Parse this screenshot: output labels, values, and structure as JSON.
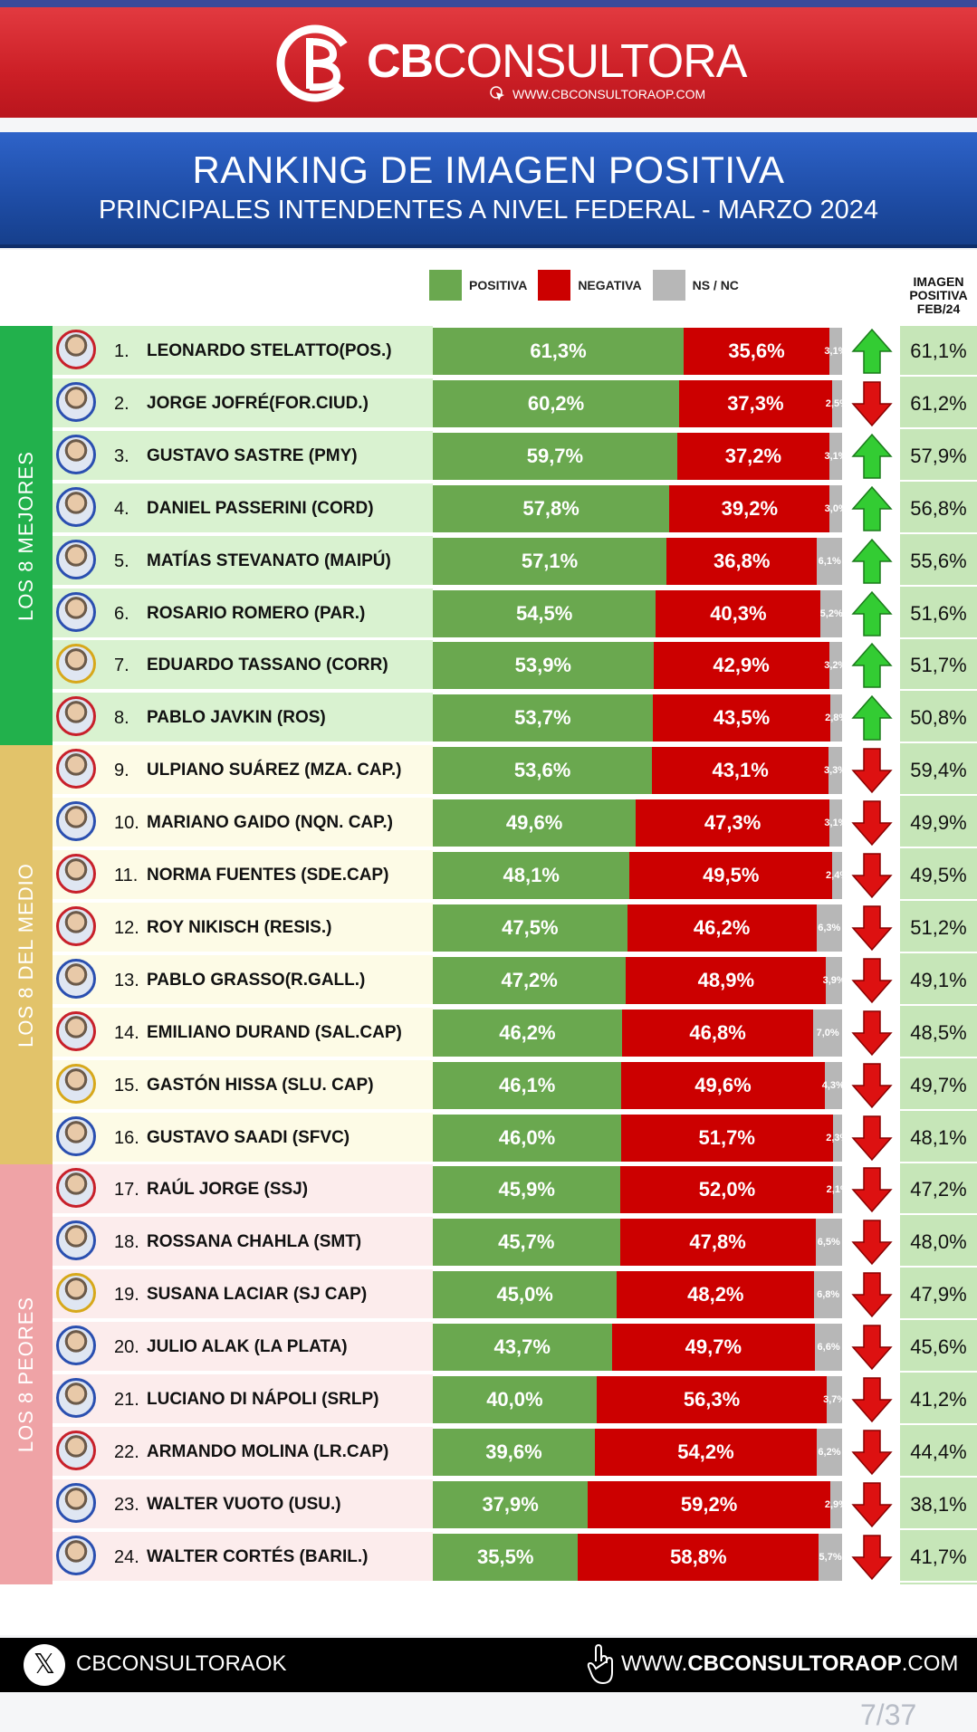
{
  "brand": {
    "name_bold": "CB",
    "name_light": "CONSULTORA",
    "url": "WWW.CBCONSULTORAOP.COM"
  },
  "title": {
    "main": "RANKING DE IMAGEN POSITIVA",
    "sub": "PRINCIPALES INTENDENTES A NIVEL FEDERAL - MARZO 2024"
  },
  "legend": {
    "positive": "POSITIVA",
    "negative": "NEGATIVA",
    "nsnc": "NS / NC",
    "colors": {
      "positive": "#6aa84f",
      "negative": "#cc0000",
      "nsnc": "#b7b7b7"
    }
  },
  "feb_header": [
    "IMAGEN",
    "POSITIVA",
    "FEB/24"
  ],
  "groups": [
    {
      "label": "LOS 8 MEJORES",
      "color": "#22b14c",
      "row_bg": "#d9f2d0"
    },
    {
      "label": "LOS 8 DEL MEDIO",
      "color": "#e2c36a",
      "row_bg": "#fdfbe6"
    },
    {
      "label": "LOS 8 PEORES",
      "color": "#efa3a6",
      "row_bg": "#fcecec"
    }
  ],
  "chart_data": {
    "type": "bar",
    "stacked": true,
    "orientation": "horizontal",
    "title": "RANKING DE IMAGEN POSITIVA",
    "subtitle": "PRINCIPALES INTENDENTES A NIVEL FEDERAL - MARZO 2024",
    "series": [
      {
        "name": "POSITIVA"
      },
      {
        "name": "NEGATIVA"
      },
      {
        "name": "NS / NC"
      }
    ],
    "rows": [
      {
        "rank": "1.",
        "name": "LEONARDO STELATTO(POS.)",
        "pos": 61.3,
        "neg": 35.6,
        "ns": 3.1,
        "pos_label": "61,3%",
        "neg_label": "35,6%",
        "ns_label": "3,1%",
        "trend": "up",
        "feb": "61,1%",
        "frame": "red"
      },
      {
        "rank": "2.",
        "name": "JORGE JOFRÉ(FOR.CIUD.)",
        "pos": 60.2,
        "neg": 37.3,
        "ns": 2.5,
        "pos_label": "60,2%",
        "neg_label": "37,3%",
        "ns_label": "2,5%",
        "trend": "down",
        "feb": "61,2%",
        "frame": "blue"
      },
      {
        "rank": "3.",
        "name": "GUSTAVO SASTRE (PMY)",
        "pos": 59.7,
        "neg": 37.2,
        "ns": 3.1,
        "pos_label": "59,7%",
        "neg_label": "37,2%",
        "ns_label": "3,1%",
        "trend": "up",
        "feb": "57,9%",
        "frame": "blue"
      },
      {
        "rank": "4.",
        "name": "DANIEL PASSERINI (CORD)",
        "pos": 57.8,
        "neg": 39.2,
        "ns": 3.0,
        "pos_label": "57,8%",
        "neg_label": "39,2%",
        "ns_label": "3,0%",
        "trend": "up",
        "feb": "56,8%",
        "frame": "blue"
      },
      {
        "rank": "5.",
        "name": "MATÍAS STEVANATO (MAIPÚ)",
        "pos": 57.1,
        "neg": 36.8,
        "ns": 6.1,
        "pos_label": "57,1%",
        "neg_label": "36,8%",
        "ns_label": "6,1%",
        "trend": "up",
        "feb": "55,6%",
        "frame": "blue"
      },
      {
        "rank": "6.",
        "name": "ROSARIO ROMERO (PAR.)",
        "pos": 54.5,
        "neg": 40.3,
        "ns": 5.2,
        "pos_label": "54,5%",
        "neg_label": "40,3%",
        "ns_label": "5,2%",
        "trend": "up",
        "feb": "51,6%",
        "frame": "blue"
      },
      {
        "rank": "7.",
        "name": "EDUARDO TASSANO (CORR)",
        "pos": 53.9,
        "neg": 42.9,
        "ns": 3.2,
        "pos_label": "53,9%",
        "neg_label": "42,9%",
        "ns_label": "3,2%",
        "trend": "up",
        "feb": "51,7%",
        "frame": "gold"
      },
      {
        "rank": "8.",
        "name": "PABLO JAVKIN (ROS)",
        "pos": 53.7,
        "neg": 43.5,
        "ns": 2.8,
        "pos_label": "53,7%",
        "neg_label": "43,5%",
        "ns_label": "2,8%",
        "trend": "up",
        "feb": "50,8%",
        "frame": "red"
      },
      {
        "rank": "9.",
        "name": "ULPIANO SUÁREZ (MZA. CAP.)",
        "pos": 53.6,
        "neg": 43.1,
        "ns": 3.3,
        "pos_label": "53,6%",
        "neg_label": "43,1%",
        "ns_label": "3,3%",
        "trend": "down",
        "feb": "59,4%",
        "frame": "red"
      },
      {
        "rank": "10.",
        "name": "MARIANO GAIDO (NQN. CAP.)",
        "pos": 49.6,
        "neg": 47.3,
        "ns": 3.1,
        "pos_label": "49,6%",
        "neg_label": "47,3%",
        "ns_label": "3,1%",
        "trend": "down",
        "feb": "49,9%",
        "frame": "blue"
      },
      {
        "rank": "11.",
        "name": "NORMA FUENTES (SDE.CAP)",
        "pos": 48.1,
        "neg": 49.5,
        "ns": 2.4,
        "pos_label": "48,1%",
        "neg_label": "49,5%",
        "ns_label": "2,4%",
        "trend": "down",
        "feb": "49,5%",
        "frame": "red"
      },
      {
        "rank": "12.",
        "name": "ROY NIKISCH (RESIS.)",
        "pos": 47.5,
        "neg": 46.2,
        "ns": 6.3,
        "pos_label": "47,5%",
        "neg_label": "46,2%",
        "ns_label": "6,3%",
        "trend": "down",
        "feb": "51,2%",
        "frame": "red"
      },
      {
        "rank": "13.",
        "name": "PABLO GRASSO(R.GALL.)",
        "pos": 47.2,
        "neg": 48.9,
        "ns": 3.9,
        "pos_label": "47,2%",
        "neg_label": "48,9%",
        "ns_label": "3,9%",
        "trend": "down",
        "feb": "49,1%",
        "frame": "blue"
      },
      {
        "rank": "14.",
        "name": "EMILIANO DURAND (SAL.CAP)",
        "pos": 46.2,
        "neg": 46.8,
        "ns": 7.0,
        "pos_label": "46,2%",
        "neg_label": "46,8%",
        "ns_label": "7,0%",
        "trend": "down",
        "feb": "48,5%",
        "frame": "red"
      },
      {
        "rank": "15.",
        "name": "GASTÓN HISSA (SLU. CAP)",
        "pos": 46.1,
        "neg": 49.6,
        "ns": 4.3,
        "pos_label": "46,1%",
        "neg_label": "49,6%",
        "ns_label": "4,3%",
        "trend": "down",
        "feb": "49,7%",
        "frame": "gold"
      },
      {
        "rank": "16.",
        "name": "GUSTAVO SAADI (SFVC)",
        "pos": 46.0,
        "neg": 51.7,
        "ns": 2.3,
        "pos_label": "46,0%",
        "neg_label": "51,7%",
        "ns_label": "2,3%",
        "trend": "down",
        "feb": "48,1%",
        "frame": "blue"
      },
      {
        "rank": "17.",
        "name": "RAÚL JORGE (SSJ)",
        "pos": 45.9,
        "neg": 52.0,
        "ns": 2.1,
        "pos_label": "45,9%",
        "neg_label": "52,0%",
        "ns_label": "2,1%",
        "trend": "down",
        "feb": "47,2%",
        "frame": "red"
      },
      {
        "rank": "18.",
        "name": "ROSSANA CHAHLA (SMT)",
        "pos": 45.7,
        "neg": 47.8,
        "ns": 6.5,
        "pos_label": "45,7%",
        "neg_label": "47,8%",
        "ns_label": "6,5%",
        "trend": "down",
        "feb": "48,0%",
        "frame": "blue"
      },
      {
        "rank": "19.",
        "name": "SUSANA LACIAR (SJ CAP)",
        "pos": 45.0,
        "neg": 48.2,
        "ns": 6.8,
        "pos_label": "45,0%",
        "neg_label": "48,2%",
        "ns_label": "6,8%",
        "trend": "down",
        "feb": "47,9%",
        "frame": "gold"
      },
      {
        "rank": "20.",
        "name": "JULIO ALAK (LA PLATA)",
        "pos": 43.7,
        "neg": 49.7,
        "ns": 6.6,
        "pos_label": "43,7%",
        "neg_label": "49,7%",
        "ns_label": "6,6%",
        "trend": "down",
        "feb": "45,6%",
        "frame": "blue"
      },
      {
        "rank": "21.",
        "name": "LUCIANO DI NÁPOLI (SRLP)",
        "pos": 40.0,
        "neg": 56.3,
        "ns": 3.7,
        "pos_label": "40,0%",
        "neg_label": "56,3%",
        "ns_label": "3,7%",
        "trend": "down",
        "feb": "41,2%",
        "frame": "blue"
      },
      {
        "rank": "22.",
        "name": "ARMANDO MOLINA (LR.CAP)",
        "pos": 39.6,
        "neg": 54.2,
        "ns": 6.2,
        "pos_label": "39,6%",
        "neg_label": "54,2%",
        "ns_label": "6,2%",
        "trend": "down",
        "feb": "44,4%",
        "frame": "red"
      },
      {
        "rank": "23.",
        "name": "WALTER VUOTO (USU.)",
        "pos": 37.9,
        "neg": 59.2,
        "ns": 2.9,
        "pos_label": "37,9%",
        "neg_label": "59,2%",
        "ns_label": "2,9%",
        "trend": "down",
        "feb": "38,1%",
        "frame": "blue"
      },
      {
        "rank": "24.",
        "name": "WALTER CORTÉS (BARIL.)",
        "pos": 35.5,
        "neg": 58.8,
        "ns": 5.7,
        "pos_label": "35,5%",
        "neg_label": "58,8%",
        "ns_label": "5,7%",
        "trend": "down",
        "feb": "41,7%",
        "frame": "blue"
      }
    ],
    "xlim": [
      0,
      100
    ],
    "legend": "top-center"
  },
  "footer": {
    "handle": "CBCONSULTORAOK",
    "site_prefix": "WWW.",
    "site_bold": "CBCONSULTORAOP",
    "site_suffix": ".COM"
  },
  "page_indicator": "7/37"
}
